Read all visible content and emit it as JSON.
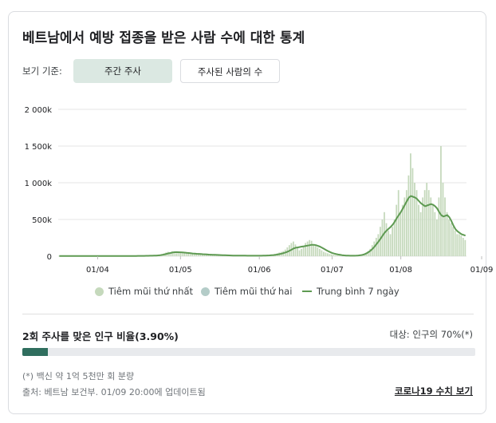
{
  "title": "베트남에서 예방 접종을 받은 사람 수에 대한 통계",
  "view": {
    "label": "보기 기준:",
    "tabs": [
      {
        "label": "주간 주사",
        "active": true
      },
      {
        "label": "주사된 사람의 수",
        "active": false
      }
    ]
  },
  "chart_data": {
    "type": "bar",
    "y_ticks": [
      "2 000k",
      "1 500k",
      "1 000k",
      "500k",
      "0"
    ],
    "x_ticks": [
      "01/04",
      "01/05",
      "01/06",
      "01/07",
      "01/08",
      "01/09"
    ],
    "ylim": [
      0,
      2000000
    ],
    "colors": {
      "first_dose": "#c5d9bc",
      "second_dose": "#b4ccc8",
      "average": "#5e9a52"
    },
    "legend": [
      "Tiêm mũi thứ nhất",
      "Tiêm mũi thứ hai",
      "Trung bình 7 ngày"
    ],
    "first_dose": [
      2000,
      1500,
      2500,
      2000,
      1800,
      2200,
      2100,
      1900,
      2300,
      2000,
      2100,
      1800,
      2000,
      2200,
      2500,
      2300,
      2100,
      2400,
      2200,
      2600,
      2500,
      2300,
      2700,
      2400,
      2600,
      3000,
      2800,
      2700,
      3100,
      2900,
      3000,
      3200,
      3500,
      3300,
      3600,
      3400,
      3800,
      4000,
      3700,
      4200,
      4500,
      4300,
      4800,
      5000,
      6000,
      7000,
      8000,
      9500,
      12000,
      15000,
      20000,
      30000,
      40000,
      50000,
      60000,
      55000,
      65000,
      50000,
      40000,
      60000,
      55000,
      45000,
      50000,
      40000,
      35000,
      30000,
      40000,
      35000,
      30000,
      25000,
      28000,
      30000,
      25000,
      22000,
      20000,
      18000,
      17000,
      16000,
      15000,
      14000,
      13000,
      12000,
      11000,
      10000,
      10000,
      9000,
      8000,
      9000,
      10000,
      8000,
      7000,
      8000,
      7000,
      6000,
      7000,
      6000,
      5000,
      6000,
      6000,
      7000,
      8000,
      9000,
      10000,
      12000,
      15000,
      20000,
      25000,
      30000,
      40000,
      50000,
      60000,
      70000,
      90000,
      120000,
      150000,
      180000,
      200000,
      160000,
      120000,
      80000,
      100000,
      130000,
      180000,
      200000,
      220000,
      210000,
      160000,
      140000,
      120000,
      100000,
      80000,
      60000,
      50000,
      40000,
      30000,
      25000,
      20000,
      15000,
      12000,
      10000,
      9000,
      8000,
      7000,
      6000,
      5000,
      5000,
      6000,
      8000,
      10000,
      15000,
      20000,
      30000,
      50000,
      70000,
      100000,
      150000,
      200000,
      250000,
      300000,
      400000,
      500000,
      600000,
      450000,
      350000,
      300000,
      400000,
      500000,
      700000,
      900000,
      600000,
      700000,
      800000,
      900000,
      1100000,
      1400000,
      1200000,
      1000000,
      900000,
      700000,
      600000,
      800000,
      900000,
      1000000,
      900000,
      800000,
      700000,
      600000,
      500000,
      800000,
      1500000,
      1000000,
      800000,
      600000,
      500000,
      450000,
      400000,
      350000,
      300000,
      300000,
      280000,
      250000,
      220000
    ],
    "second_dose": [
      0,
      0,
      0,
      0,
      0,
      0,
      0,
      0,
      0,
      0,
      0,
      0,
      0,
      0,
      0,
      0,
      0,
      0,
      0,
      0,
      0,
      0,
      0,
      0,
      0,
      0,
      0,
      0,
      0,
      0,
      0,
      0,
      0,
      0,
      0,
      0,
      0,
      0,
      0,
      0,
      0,
      0,
      0,
      0,
      0,
      0,
      0,
      0,
      0,
      0,
      0,
      0,
      0,
      0,
      0,
      0,
      0,
      0,
      0,
      0,
      0,
      0,
      0,
      0,
      0,
      0,
      0,
      0,
      0,
      0,
      0,
      0,
      0,
      0,
      0,
      0,
      0,
      0,
      0,
      0,
      0,
      0,
      0,
      0,
      0,
      0,
      0,
      0,
      0,
      0,
      0,
      0,
      0,
      0,
      0,
      0,
      0,
      0,
      0,
      0,
      0,
      0,
      0,
      0,
      0,
      0,
      0,
      0,
      0,
      0,
      0,
      0,
      0,
      0,
      0,
      0,
      0,
      0,
      0,
      0,
      0,
      0,
      0,
      0,
      0,
      0,
      0,
      0,
      0,
      0,
      0,
      0,
      0,
      0,
      0,
      0,
      0,
      0,
      0,
      0,
      0,
      0,
      0,
      0,
      0,
      0,
      0,
      0,
      0,
      0,
      0,
      0,
      0,
      0,
      0,
      0,
      0,
      0,
      0,
      0,
      0,
      0,
      0,
      0,
      0,
      0,
      0,
      0,
      0,
      0,
      0,
      0,
      0,
      0,
      0,
      0,
      0,
      0,
      0,
      0,
      0,
      0,
      0,
      0,
      0,
      0,
      0,
      0,
      0,
      0,
      0,
      0,
      0,
      0,
      0,
      0,
      0,
      0,
      0,
      0,
      0,
      0,
      0,
      0,
      0,
      0,
      0
    ],
    "average": [
      2000,
      1900,
      2000,
      2000,
      2000,
      2000,
      2100,
      2100,
      2100,
      2100,
      2100,
      2100,
      2100,
      2100,
      2200,
      2200,
      2200,
      2300,
      2300,
      2400,
      2400,
      2400,
      2500,
      2500,
      2500,
      2600,
      2600,
      2700,
      2700,
      2800,
      2900,
      3000,
      3100,
      3200,
      3300,
      3400,
      3500,
      3700,
      3800,
      4000,
      4200,
      4400,
      4700,
      5000,
      5500,
      6100,
      6800,
      7800,
      9000,
      11000,
      14000,
      18000,
      24000,
      31000,
      38000,
      44000,
      50000,
      54000,
      55000,
      54000,
      53000,
      51000,
      49000,
      46000,
      43000,
      40000,
      37000,
      35000,
      33000,
      31000,
      29000,
      27000,
      26000,
      24000,
      22000,
      21000,
      20000,
      19000,
      17000,
      16000,
      15000,
      14000,
      13000,
      12000,
      11000,
      10000,
      9000,
      9000,
      9000,
      8500,
      8000,
      8000,
      7500,
      7000,
      7000,
      6500,
      6500,
      6300,
      6200,
      6400,
      6800,
      7400,
      8200,
      9300,
      10800,
      12800,
      15500,
      18800,
      23000,
      28500,
      35000,
      42500,
      51000,
      62000,
      75000,
      90000,
      105000,
      115000,
      120000,
      125000,
      130000,
      135000,
      140000,
      145000,
      150000,
      155000,
      155000,
      150000,
      140000,
      130000,
      115000,
      100000,
      85000,
      70000,
      57000,
      45000,
      36000,
      29000,
      23000,
      18000,
      14000,
      11000,
      9000,
      8000,
      7000,
      6500,
      7000,
      8000,
      10000,
      13000,
      18000,
      26000,
      38000,
      55000,
      75000,
      100000,
      130000,
      165000,
      200000,
      240000,
      280000,
      320000,
      350000,
      375000,
      400000,
      430000,
      470000,
      520000,
      560000,
      600000,
      650000,
      700000,
      750000,
      800000,
      820000,
      810000,
      800000,
      780000,
      750000,
      720000,
      700000,
      680000,
      690000,
      700000,
      710000,
      700000,
      680000,
      650000,
      600000,
      560000,
      540000,
      550000,
      560000,
      530000,
      480000,
      420000,
      370000,
      340000,
      320000,
      300000,
      290000,
      280000
    ],
    "tick_positions": [
      19,
      60,
      99,
      135,
      169,
      209
    ]
  },
  "legend": {
    "first": "Tiêm mũi thứ nhất",
    "second": "Tiêm mũi thứ hai",
    "avg": "Trung bình 7 ngày"
  },
  "coverage": {
    "label": "2회 주사를 맞은 인구 비율(3.90%)",
    "percent": 3.9,
    "target": "대상: 인구의 70%(*)"
  },
  "footnote": "(*) 백신 약 1억 5천만 회 분량",
  "source": "출처: 베트남 보건부. 01/09 20:00에 업데이트됨",
  "more_link": "코로나19 수치 보기"
}
